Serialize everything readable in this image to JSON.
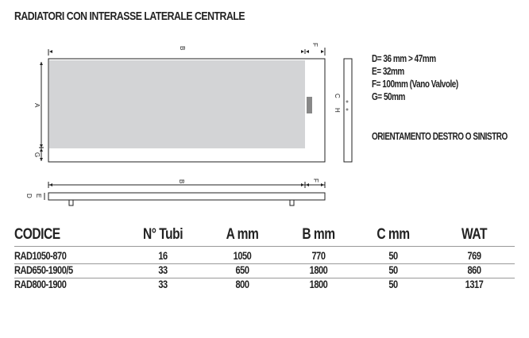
{
  "title": "RADIATORI CON INTERASSE LATERALE CENTRALE",
  "diagram": {
    "labels": {
      "B": "B",
      "F": "F",
      "A": "A",
      "G": "G",
      "C": "C",
      "H": "H",
      "D": "D",
      "E": "E"
    }
  },
  "specs": [
    "D= 36 mm > 47mm",
    "E= 32mm",
    "F= 100mm (Vano Valvole)",
    "G= 50mm"
  ],
  "orientation": "ORIENTAMENTO DESTRO O SINISTRO",
  "table": {
    "headers": [
      "CODICE",
      "N° Tubi",
      "A mm",
      "B mm",
      "C mm",
      "WAT"
    ],
    "rows": [
      [
        "RAD1050-870",
        "16",
        "1050",
        "770",
        "50",
        "769"
      ],
      [
        "RAD650-1900/5",
        "33",
        "650",
        "1800",
        "50",
        "860"
      ],
      [
        "RAD800-1900",
        "33",
        "800",
        "1800",
        "50",
        "1317"
      ]
    ]
  }
}
